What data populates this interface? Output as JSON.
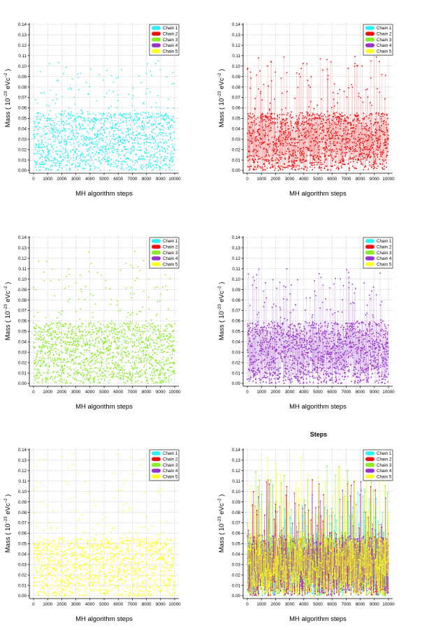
{
  "figure_title": "Steps",
  "colors": {
    "Chain 1": "#2ef0f0",
    "Chain 2": "#ee1111",
    "Chain 3": "#88ee22",
    "Chain 4": "#9933cc",
    "Chain 5": "#ffff22"
  },
  "chart_data": [
    {
      "type": "scatter",
      "panel": "top-left",
      "title": "",
      "xlabel": "MH algorithm steps",
      "ylabel_main": "Mass ( 10",
      "ylabel_exp1": "−23",
      "ylabel_mid": " eVc",
      "ylabel_exp2": "−2",
      "ylabel_end": " )",
      "xlim": [
        0,
        10000
      ],
      "ylim": [
        0,
        0.14
      ],
      "xticks": [
        "0",
        "1000",
        "2000",
        "3000",
        "4000",
        "5000",
        "6000",
        "7000",
        "8000",
        "9000",
        "10000"
      ],
      "yticks": [
        "0.00",
        "0.01",
        "0.02",
        "0.03",
        "0.04",
        "0.05",
        "0.06",
        "0.07",
        "0.08",
        "0.09",
        "0.10",
        "0.11",
        "0.12",
        "0.13",
        "0.14"
      ],
      "grid": true,
      "legend_position": "top-right",
      "legend": [
        "Chain 1",
        "Chain 2",
        "Chain 3",
        "Chain 4",
        "Chain 5"
      ],
      "series": [
        {
          "name": "Chain 1",
          "style": "points",
          "bulk_range": [
            0.0,
            0.055
          ],
          "outlier_max": 0.105,
          "n_points": 1400,
          "seed": 11
        }
      ]
    },
    {
      "type": "scatter",
      "panel": "top-right",
      "title": "",
      "xlabel": "MH algorithm steps",
      "ylabel_main": "Mass ( 10",
      "ylabel_exp1": "−23",
      "ylabel_mid": " eVc",
      "ylabel_exp2": "−2",
      "ylabel_end": " )",
      "xlim": [
        0,
        10000
      ],
      "ylim": [
        0,
        0.14
      ],
      "xticks": [
        "0",
        "1000",
        "2000",
        "3000",
        "4000",
        "5000",
        "6000",
        "7000",
        "8000",
        "9000",
        "10000"
      ],
      "yticks": [
        "0.00",
        "0.01",
        "0.02",
        "0.03",
        "0.04",
        "0.05",
        "0.06",
        "0.07",
        "0.08",
        "0.09",
        "0.10",
        "0.11",
        "0.12",
        "0.13",
        "0.14"
      ],
      "grid": true,
      "legend_position": "top-right",
      "legend": [
        "Chain 1",
        "Chain 2",
        "Chain 3",
        "Chain 4",
        "Chain 5"
      ],
      "series": [
        {
          "name": "Chain 2",
          "style": "points-lines",
          "bulk_range": [
            0.0,
            0.055
          ],
          "outlier_max": 0.112,
          "n_points": 1400,
          "seed": 23
        }
      ]
    },
    {
      "type": "scatter",
      "panel": "middle-left",
      "title": "",
      "xlabel": "MH algorithm steps",
      "ylabel_main": "Mass ( 10",
      "ylabel_exp1": "−23",
      "ylabel_mid": " eVc",
      "ylabel_exp2": "−2",
      "ylabel_end": " )",
      "xlim": [
        0,
        10000
      ],
      "ylim": [
        0,
        0.14
      ],
      "xticks": [
        "0",
        "1000",
        "2000",
        "3000",
        "4000",
        "5000",
        "6000",
        "7000",
        "8000",
        "9000",
        "10000"
      ],
      "yticks": [
        "0.00",
        "0.01",
        "0.02",
        "0.03",
        "0.04",
        "0.05",
        "0.06",
        "0.07",
        "0.08",
        "0.09",
        "0.10",
        "0.11",
        "0.12",
        "0.13",
        "0.14"
      ],
      "grid": true,
      "legend_position": "top-right",
      "legend": [
        "Chain 1",
        "Chain 2",
        "Chain 3",
        "Chain 4",
        "Chain 5"
      ],
      "series": [
        {
          "name": "Chain 3",
          "style": "points",
          "bulk_range": [
            0.0,
            0.058
          ],
          "outlier_max": 0.127,
          "n_points": 1500,
          "seed": 37
        }
      ]
    },
    {
      "type": "scatter",
      "panel": "middle-right",
      "title": "",
      "xlabel": "MH algorithm steps",
      "ylabel_main": "Mass ( 10",
      "ylabel_exp1": "−23",
      "ylabel_mid": " eVc",
      "ylabel_exp2": "−2",
      "ylabel_end": " )",
      "xlim": [
        0,
        10000
      ],
      "ylim": [
        0,
        0.14
      ],
      "xticks": [
        "0",
        "1000",
        "2000",
        "3000",
        "4000",
        "5000",
        "6000",
        "7000",
        "8000",
        "9000",
        "10000"
      ],
      "yticks": [
        "0.00",
        "0.01",
        "0.02",
        "0.03",
        "0.04",
        "0.05",
        "0.06",
        "0.07",
        "0.08",
        "0.09",
        "0.10",
        "0.11",
        "0.12",
        "0.13",
        "0.14"
      ],
      "grid": true,
      "legend_position": "top-right",
      "legend": [
        "Chain 1",
        "Chain 2",
        "Chain 3",
        "Chain 4",
        "Chain 5"
      ],
      "series": [
        {
          "name": "Chain 4",
          "style": "points-lines",
          "bulk_range": [
            0.0,
            0.058
          ],
          "outlier_max": 0.11,
          "n_points": 1500,
          "seed": 53
        }
      ]
    },
    {
      "type": "scatter",
      "panel": "bottom-left",
      "title": "",
      "xlabel": "MH algorithm steps",
      "ylabel_main": "Mass ( 10",
      "ylabel_exp1": "−23",
      "ylabel_mid": " eVc",
      "ylabel_exp2": "−2",
      "ylabel_end": " )",
      "xlim": [
        0,
        10000
      ],
      "ylim": [
        0,
        0.14
      ],
      "xticks": [
        "0",
        "1000",
        "2000",
        "3000",
        "4000",
        "5000",
        "6000",
        "7000",
        "8000",
        "9000",
        "10000"
      ],
      "yticks": [
        "0.00",
        "0.01",
        "0.02",
        "0.03",
        "0.04",
        "0.05",
        "0.06",
        "0.07",
        "0.08",
        "0.09",
        "0.10",
        "0.11",
        "0.12",
        "0.13",
        "0.14"
      ],
      "grid": true,
      "legend_position": "top-right",
      "legend": [
        "Chain 1",
        "Chain 2",
        "Chain 3",
        "Chain 4",
        "Chain 5"
      ],
      "series": [
        {
          "name": "Chain 5",
          "style": "points",
          "bulk_range": [
            0.0,
            0.055
          ],
          "outlier_max": 0.138,
          "n_points": 1400,
          "seed": 71
        }
      ]
    },
    {
      "type": "scatter",
      "panel": "bottom-right",
      "title": "Steps",
      "xlabel": "MH algorithm steps",
      "ylabel_main": "Mass ( 10",
      "ylabel_exp1": "−23",
      "ylabel_mid": " eVc",
      "ylabel_exp2": "−2",
      "ylabel_end": " )",
      "xlim": [
        0,
        10000
      ],
      "ylim": [
        0,
        0.14
      ],
      "xticks": [
        "0",
        "1000",
        "2000",
        "3000",
        "4000",
        "5000",
        "6000",
        "7000",
        "8000",
        "9000",
        "10000"
      ],
      "yticks": [
        "0.00",
        "0.01",
        "0.02",
        "0.03",
        "0.04",
        "0.05",
        "0.06",
        "0.07",
        "0.08",
        "0.09",
        "0.10",
        "0.11",
        "0.12",
        "0.13",
        "0.14"
      ],
      "grid": true,
      "legend_position": "top-right",
      "legend": [
        "Chain 1",
        "Chain 2",
        "Chain 3",
        "Chain 4",
        "Chain 5"
      ],
      "series": [
        {
          "name": "Chain 1",
          "style": "dense-lines",
          "bulk_range": [
            0.0,
            0.055
          ],
          "outlier_max": 0.105,
          "n_points": 700,
          "seed": 101
        },
        {
          "name": "Chain 2",
          "style": "dense-lines",
          "bulk_range": [
            0.0,
            0.055
          ],
          "outlier_max": 0.112,
          "n_points": 700,
          "seed": 103
        },
        {
          "name": "Chain 3",
          "style": "dense-lines",
          "bulk_range": [
            0.0,
            0.058
          ],
          "outlier_max": 0.127,
          "n_points": 700,
          "seed": 107
        },
        {
          "name": "Chain 4",
          "style": "dense-lines",
          "bulk_range": [
            0.0,
            0.058
          ],
          "outlier_max": 0.11,
          "n_points": 700,
          "seed": 109
        },
        {
          "name": "Chain 5",
          "style": "dense-lines",
          "bulk_range": [
            0.0,
            0.055
          ],
          "outlier_max": 0.138,
          "n_points": 700,
          "seed": 113
        }
      ]
    }
  ]
}
